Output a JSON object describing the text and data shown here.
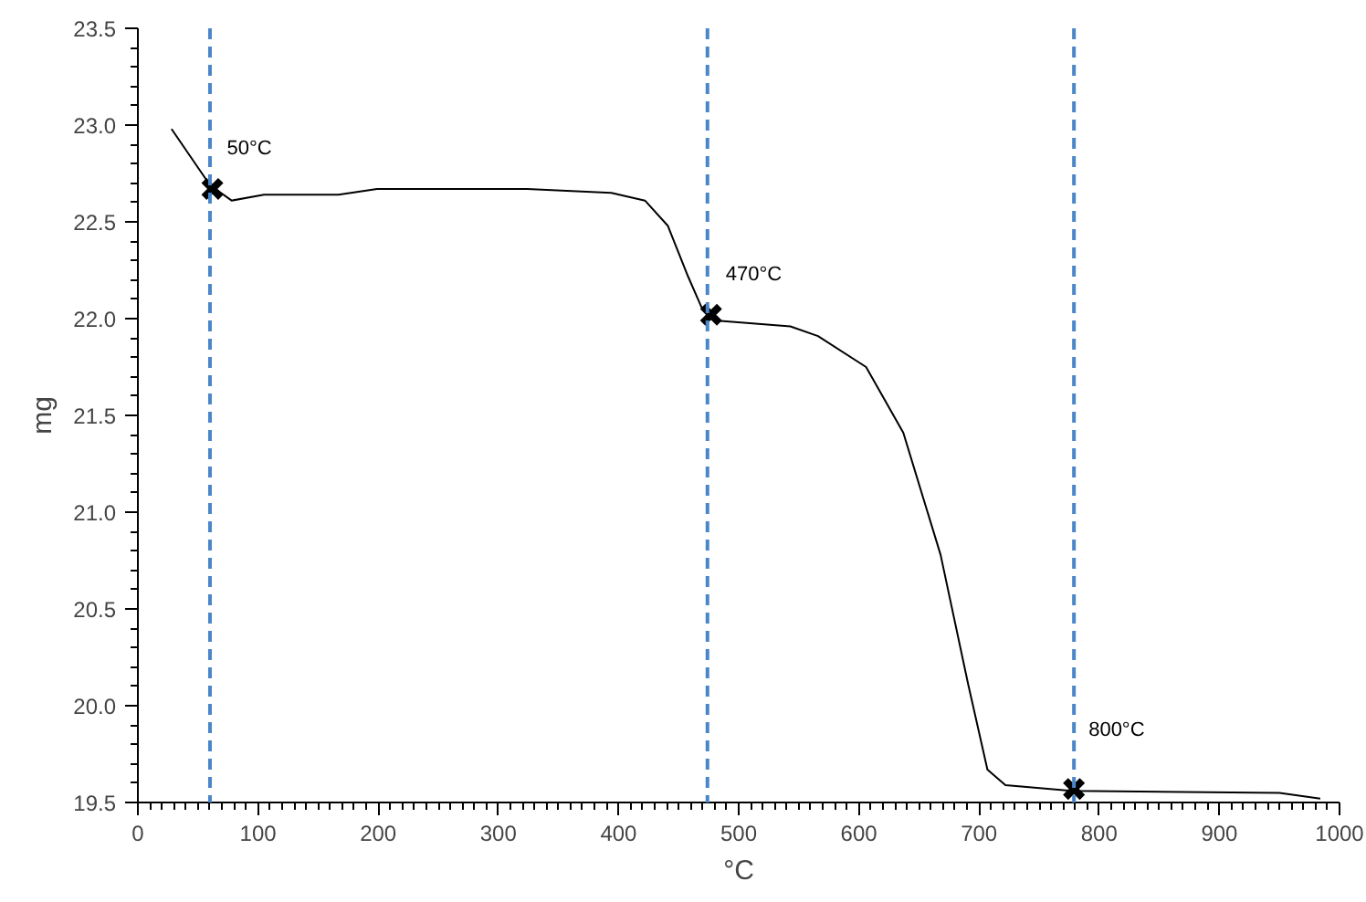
{
  "chart_data": {
    "type": "line",
    "xlabel": "°C",
    "ylabel": "mg",
    "xlim": [
      0,
      1000
    ],
    "ylim": [
      19.5,
      23.5
    ],
    "xticks": [
      0,
      100,
      200,
      300,
      400,
      500,
      600,
      700,
      800,
      900,
      1000
    ],
    "yticks": [
      19.5,
      {
        "value": 20,
        "label": "20.0"
      },
      20.5,
      {
        "value": 21,
        "label": "21.0"
      },
      21.5,
      {
        "value": 22,
        "label": "22.0"
      },
      22.5,
      {
        "value": 23,
        "label": "23.0"
      },
      23.5
    ],
    "grid": false,
    "line_style": "solid",
    "marker": "none",
    "series": [
      {
        "color": "#000000",
        "x": [
          28,
          60,
          78,
          105,
          167,
          199,
          324,
          394,
          422,
          441,
          457,
          469,
          480,
          543,
          566,
          606,
          637,
          668,
          691,
          707,
          722,
          777,
          950,
          984
        ],
        "values": [
          22.98,
          22.69,
          22.61,
          22.64,
          22.64,
          22.67,
          22.67,
          22.65,
          22.61,
          22.48,
          22.23,
          22.06,
          21.99,
          21.96,
          21.91,
          21.75,
          21.41,
          20.78,
          20.11,
          19.67,
          19.59,
          19.56,
          19.55,
          19.52
        ]
      },
      {
        "type": "scatter",
        "marker": "cross",
        "color": "#000000",
        "x": [
          62,
          477,
          779
        ],
        "values": [
          22.67,
          22.02,
          19.57
        ]
      }
    ],
    "ref_lines": [
      {
        "axis": "x",
        "value": 60,
        "color": "#4a86c8",
        "line_style": "dashed"
      },
      {
        "axis": "x",
        "value": 474,
        "color": "#4a86c8",
        "line_style": "dashed"
      },
      {
        "axis": "x",
        "value": 779,
        "color": "#4a86c8",
        "line_style": "dashed"
      }
    ],
    "annotations": [
      {
        "text": "50°C",
        "x": 62,
        "y": 22.67
      },
      {
        "text": "470°C",
        "x": 477,
        "y": 22.02
      },
      {
        "text": "800°C",
        "x": 779,
        "y": 19.57
      }
    ]
  }
}
